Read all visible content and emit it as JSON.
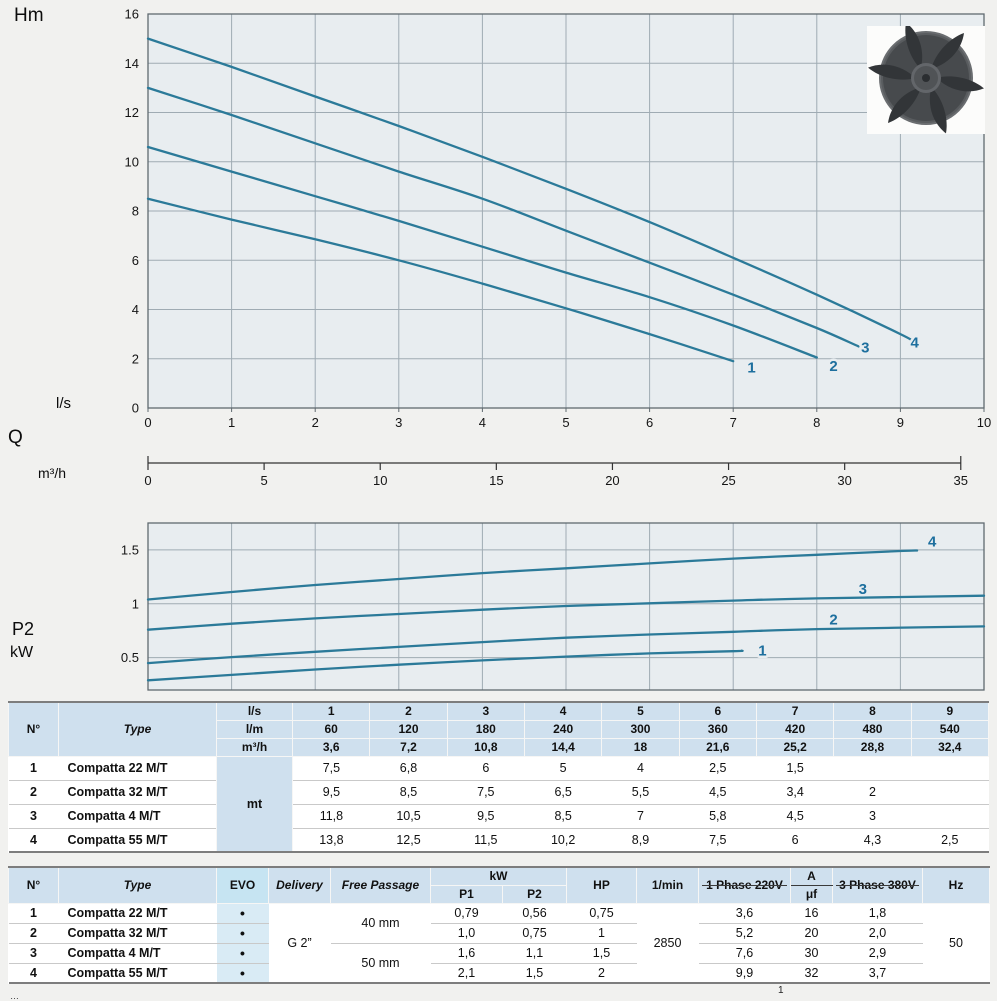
{
  "colors": {
    "page_bg": "#f1f1ef",
    "plot_bg": "#e8edf0",
    "grid": "#9fabb3",
    "plot_border": "#606a70",
    "curve": "#2b7a99",
    "curve_label": "#1d6f9e",
    "table_header_bg": "#cfe0ee",
    "evo_column_bg": "#d9ebf5"
  },
  "chart_data": [
    {
      "type": "line",
      "title": "Head vs flow performance curves",
      "ylabel": "Hm",
      "xname_label": "Q",
      "xunit_label": "l/s",
      "x2unit_label": "m³/h",
      "xlim": [
        0,
        10
      ],
      "ylim": [
        0,
        16
      ],
      "xticks": [
        0,
        1,
        2,
        3,
        4,
        5,
        6,
        7,
        8,
        9,
        10
      ],
      "yticks": [
        0,
        2,
        4,
        6,
        8,
        10,
        12,
        14,
        16
      ],
      "x2ticks": [
        0,
        5,
        10,
        15,
        20,
        25,
        30,
        35
      ],
      "x2scale": 3.6,
      "xtick_labels_visible": true,
      "series": [
        {
          "name": "1",
          "label_at": [
            7.22,
            1.45
          ],
          "points": [
            [
              0,
              8.5
            ],
            [
              1,
              7.65
            ],
            [
              2,
              6.85
            ],
            [
              3,
              6.0
            ],
            [
              4,
              5.05
            ],
            [
              5,
              4.05
            ],
            [
              6,
              3.0
            ],
            [
              7,
              1.9
            ]
          ]
        },
        {
          "name": "2",
          "label_at": [
            8.2,
            1.5
          ],
          "points": [
            [
              0,
              10.6
            ],
            [
              1,
              9.6
            ],
            [
              2,
              8.6
            ],
            [
              3,
              7.6
            ],
            [
              4,
              6.55
            ],
            [
              5,
              5.5
            ],
            [
              6,
              4.5
            ],
            [
              7,
              3.35
            ],
            [
              8,
              2.05
            ]
          ]
        },
        {
          "name": "3",
          "label_at": [
            8.58,
            2.25
          ],
          "points": [
            [
              0,
              13.0
            ],
            [
              1,
              11.9
            ],
            [
              2,
              10.75
            ],
            [
              3,
              9.6
            ],
            [
              4,
              8.5
            ],
            [
              5,
              7.2
            ],
            [
              6,
              5.9
            ],
            [
              7,
              4.6
            ],
            [
              8,
              3.25
            ],
            [
              8.5,
              2.5
            ]
          ]
        },
        {
          "name": "4",
          "label_at": [
            9.17,
            2.45
          ],
          "points": [
            [
              0,
              15.0
            ],
            [
              1,
              13.85
            ],
            [
              2,
              12.65
            ],
            [
              3,
              11.45
            ],
            [
              4,
              10.2
            ],
            [
              5,
              8.9
            ],
            [
              6,
              7.55
            ],
            [
              7,
              6.1
            ],
            [
              8,
              4.6
            ],
            [
              9,
              3.0
            ],
            [
              9.15,
              2.7
            ]
          ]
        }
      ]
    },
    {
      "type": "line",
      "title": "Absorbed power P2 vs flow",
      "yname_label": "P2",
      "yunit_label": "kW",
      "xlim": [
        0,
        10
      ],
      "ylim": [
        0.2,
        1.75
      ],
      "xticks": [
        0,
        1,
        2,
        3,
        4,
        5,
        6,
        7,
        8,
        9,
        10
      ],
      "yticks": [
        0.5,
        1,
        1.5
      ],
      "ytick_labels": [
        "0.5",
        "1",
        "1.5"
      ],
      "xtick_labels_visible": false,
      "series": [
        {
          "name": "1",
          "label_at": [
            7.35,
            0.52
          ],
          "points": [
            [
              0,
              0.29
            ],
            [
              1,
              0.34
            ],
            [
              2,
              0.39
            ],
            [
              3,
              0.435
            ],
            [
              4,
              0.475
            ],
            [
              5,
              0.51
            ],
            [
              6,
              0.54
            ],
            [
              7,
              0.56
            ],
            [
              7.1,
              0.565
            ]
          ]
        },
        {
          "name": "2",
          "label_at": [
            8.2,
            0.81
          ],
          "points": [
            [
              0,
              0.45
            ],
            [
              1,
              0.505
            ],
            [
              2,
              0.555
            ],
            [
              3,
              0.6
            ],
            [
              4,
              0.645
            ],
            [
              5,
              0.685
            ],
            [
              6,
              0.715
            ],
            [
              7,
              0.74
            ],
            [
              8,
              0.765
            ],
            [
              10,
              0.79
            ]
          ]
        },
        {
          "name": "3",
          "label_at": [
            8.55,
            1.09
          ],
          "points": [
            [
              0,
              0.76
            ],
            [
              1,
              0.815
            ],
            [
              2,
              0.865
            ],
            [
              3,
              0.905
            ],
            [
              4,
              0.945
            ],
            [
              5,
              0.98
            ],
            [
              6,
              1.005
            ],
            [
              7,
              1.03
            ],
            [
              8,
              1.05
            ],
            [
              10,
              1.075
            ]
          ]
        },
        {
          "name": "4",
          "label_at": [
            9.38,
            1.53
          ],
          "points": [
            [
              0,
              1.04
            ],
            [
              1,
              1.11
            ],
            [
              2,
              1.175
            ],
            [
              3,
              1.23
            ],
            [
              4,
              1.285
            ],
            [
              5,
              1.33
            ],
            [
              6,
              1.375
            ],
            [
              7,
              1.42
            ],
            [
              8,
              1.455
            ],
            [
              9,
              1.49
            ],
            [
              9.2,
              1.495
            ]
          ]
        }
      ]
    }
  ],
  "table1": {
    "headers": {
      "n": "N°",
      "type": "Type"
    },
    "unit_rows": [
      {
        "unit": "l/s",
        "values": [
          "1",
          "2",
          "3",
          "4",
          "5",
          "6",
          "7",
          "8",
          "9"
        ]
      },
      {
        "unit": "l/m",
        "values": [
          "60",
          "120",
          "180",
          "240",
          "300",
          "360",
          "420",
          "480",
          "540"
        ]
      },
      {
        "unit": "m³/h",
        "values": [
          "3,6",
          "7,2",
          "10,8",
          "14,4",
          "18",
          "21,6",
          "25,2",
          "28,8",
          "32,4"
        ]
      }
    ],
    "data_unit": "mt",
    "rows": [
      {
        "n": "1",
        "type": "Compatta 22 M/T",
        "values": [
          "7,5",
          "6,8",
          "6",
          "5",
          "4",
          "2,5",
          "1,5",
          "",
          ""
        ]
      },
      {
        "n": "2",
        "type": "Compatta 32 M/T",
        "values": [
          "9,5",
          "8,5",
          "7,5",
          "6,5",
          "5,5",
          "4,5",
          "3,4",
          "2",
          ""
        ]
      },
      {
        "n": "3",
        "type": "Compatta 4 M/T",
        "values": [
          "11,8",
          "10,5",
          "9,5",
          "8,5",
          "7",
          "5,8",
          "4,5",
          "3",
          ""
        ]
      },
      {
        "n": "4",
        "type": "Compatta 55 M/T",
        "values": [
          "13,8",
          "12,5",
          "11,5",
          "10,2",
          "8,9",
          "7,5",
          "6",
          "4,3",
          "2,5"
        ]
      }
    ]
  },
  "table2": {
    "headers": {
      "n": "N°",
      "type": "Type",
      "evo": "EVO",
      "delivery": "Delivery",
      "free_passage": "Free Passage",
      "kw": "kW",
      "p1": "P1",
      "p2": "P2",
      "hp": "HP",
      "rpm": "1/min",
      "phase1": "1 Phase 220V",
      "amp": "A",
      "uf": "μf",
      "phase3": "3 Phase 380V",
      "hz": "Hz"
    },
    "delivery_value": "G 2”",
    "free_passage_values": [
      "40 mm",
      "50 mm"
    ],
    "rpm_value": "2850",
    "hz_value": "50",
    "rows": [
      {
        "n": "1",
        "type": "Compatta 22 M/T",
        "evo": "•",
        "p1": "0,79",
        "p2": "0,56",
        "hp": "0,75",
        "amps1": "3,6",
        "uf": "16",
        "amps3": "1,8"
      },
      {
        "n": "2",
        "type": "Compatta 32 M/T",
        "evo": "•",
        "p1": "1,0",
        "p2": "0,75",
        "hp": "1",
        "amps1": "5,2",
        "uf": "20",
        "amps3": "2,0"
      },
      {
        "n": "3",
        "type": "Compatta 4 M/T",
        "evo": "•",
        "p1": "1,6",
        "p2": "1,1",
        "hp": "1,5",
        "amps1": "7,6",
        "uf": "30",
        "amps3": "2,9"
      },
      {
        "n": "4",
        "type": "Compatta 55 M/T",
        "evo": "•",
        "p1": "2,1",
        "p2": "1,5",
        "hp": "2",
        "amps1": "9,9",
        "uf": "32",
        "amps3": "3,7"
      }
    ]
  },
  "footnotes": {
    "left_partial": "…",
    "ref": "1"
  }
}
